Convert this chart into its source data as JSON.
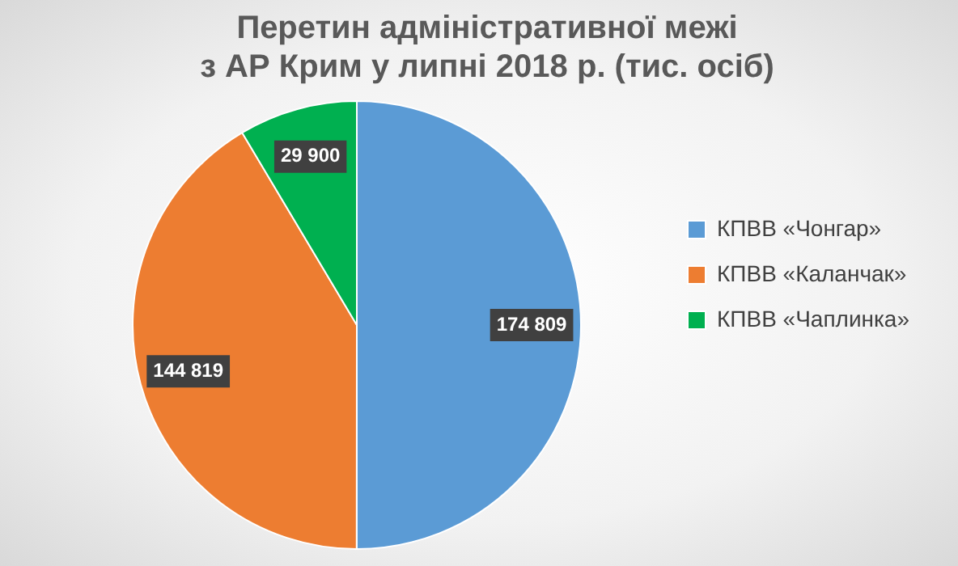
{
  "chart_data": {
    "type": "pie",
    "title": "Перетин адміністративної межі\nз АР Крим у липні 2018 р. (тис. осіб)",
    "categories": [
      "КПВВ «Чонгар»",
      "КПВВ «Каланчак»",
      "КПВВ «Чаплинка»"
    ],
    "values": [
      174809,
      144819,
      29900
    ],
    "value_labels": [
      "174 809",
      "144 819",
      "29 900"
    ],
    "colors": [
      "#5b9bd5",
      "#ed7d31",
      "#00b050"
    ],
    "legend": "right"
  }
}
